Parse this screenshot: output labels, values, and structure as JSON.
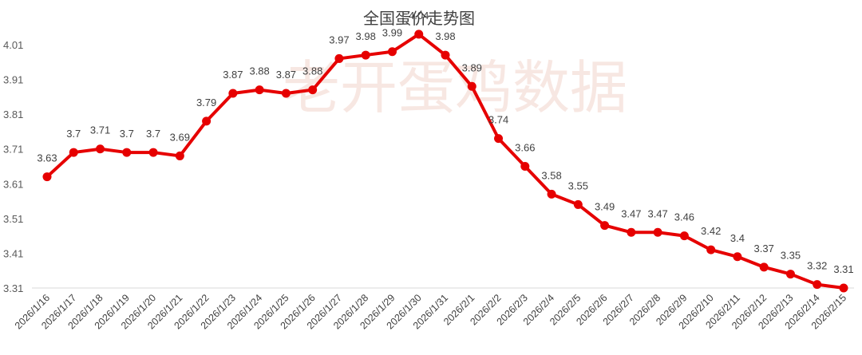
{
  "watermark": "老开蛋鸡数据",
  "colors": {
    "line": "#e60000",
    "axis": "#d9d9d9",
    "text": "#404040"
  },
  "chart_data": {
    "type": "line",
    "title": "全国蛋价走势图",
    "xlabel": "",
    "ylabel": "",
    "categories": [
      "2026/1/16",
      "2026/1/17",
      "2026/1/18",
      "2026/1/19",
      "2026/1/20",
      "2026/1/21",
      "2026/1/22",
      "2026/1/23",
      "2026/1/24",
      "2026/1/25",
      "2026/1/26",
      "2026/1/27",
      "2026/1/28",
      "2026/1/29",
      "2026/1/30",
      "2026/1/31",
      "2026/2/1",
      "2026/2/2",
      "2026/2/3",
      "2026/2/4",
      "2026/2/5",
      "2026/2/6",
      "2026/2/7",
      "2026/2/8",
      "2026/2/9",
      "2026/2/10",
      "2026/2/11",
      "2026/2/12",
      "2026/2/13",
      "2026/2/14",
      "2026/2/15"
    ],
    "values": [
      3.63,
      3.7,
      3.71,
      3.7,
      3.7,
      3.69,
      3.79,
      3.87,
      3.88,
      3.87,
      3.88,
      3.97,
      3.98,
      3.99,
      4.04,
      3.98,
      3.89,
      3.74,
      3.66,
      3.58,
      3.55,
      3.49,
      3.47,
      3.47,
      3.46,
      3.42,
      3.4,
      3.37,
      3.35,
      3.32,
      3.31
    ],
    "data_labels": [
      "3.63",
      "3.7",
      "3.71",
      "3.7",
      "3.7",
      "3.69",
      "3.79",
      "3.87",
      "3.88",
      "3.87",
      "3.88",
      "3.97",
      "3.98",
      "3.99",
      "4.04",
      "3.98",
      "3.89",
      "3.74",
      "3.66",
      "3.58",
      "3.55",
      "3.49",
      "3.47",
      "3.47",
      "3.46",
      "3.42",
      "3.4",
      "3.37",
      "3.35",
      "3.32",
      "3.31"
    ],
    "yticks": [
      "3.31",
      "3.41",
      "3.51",
      "3.61",
      "3.71",
      "3.81",
      "3.91",
      "4.01"
    ],
    "ylim": [
      3.31,
      4.01
    ],
    "grid": false,
    "legend": "none"
  }
}
